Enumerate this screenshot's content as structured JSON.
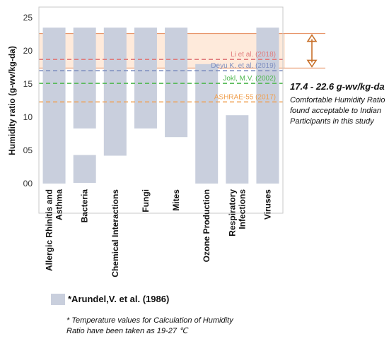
{
  "chart_data": {
    "type": "bar",
    "ylabel": "Humidity ratio (g-wv/kg-da)",
    "ylim": [
      0,
      25
    ],
    "y_ticks": [
      "00",
      "05",
      "10",
      "15",
      "20",
      "25"
    ],
    "grid": false,
    "categories": [
      "Allergic Rhinitis and Asthma",
      "Bacteria",
      "Chemical Interactions",
      "Fungi",
      "Mites",
      "Ozone Production",
      "Respiratory Infections",
      "Viruses"
    ],
    "category_labels": [
      [
        "Allergic Rhinitis and",
        "Asthma"
      ],
      [
        "Bacteria"
      ],
      [
        "Chemical Interactions"
      ],
      [
        "Fungi"
      ],
      [
        "Mites"
      ],
      [
        "Ozone Production"
      ],
      [
        "Respiratory",
        "Infections"
      ],
      [
        "Viruses"
      ]
    ],
    "series": [
      {
        "name": "*Arundel,V. et al. (1986)",
        "color": "#c9cfdd",
        "ranges": [
          [
            [
              0,
              23.5
            ]
          ],
          [
            [
              8.3,
              23.5
            ],
            [
              0.1,
              4.3
            ]
          ],
          [
            [
              4.2,
              23.5
            ]
          ],
          [
            [
              8.3,
              23.5
            ]
          ],
          [
            [
              7.0,
              23.5
            ]
          ],
          [
            [
              0,
              18.0
            ]
          ],
          [
            [
              0,
              10.3
            ]
          ],
          [
            [
              0,
              23.5
            ]
          ]
        ]
      }
    ],
    "reference_lines": [
      {
        "label": "Li et al. (2018)",
        "value": 18.7,
        "color": "#e07b7b"
      },
      {
        "label": "Deyu K. et al. (2019)",
        "value": 17.0,
        "color": "#7f8fc0"
      },
      {
        "label": "Jokl, M.V. (2002)",
        "value": 15.1,
        "color": "#4fb84f"
      },
      {
        "label": "ASHRAE-55 (2017)",
        "value": 12.3,
        "color": "#f0a050"
      }
    ],
    "comfort_band": {
      "low": 17.4,
      "high": 22.6,
      "fill": "#fde3cf",
      "stroke": "#e8956a"
    },
    "annotation": {
      "range_text": "17.4 - 22.6 g-wv/kg-da",
      "text": "Comfortable Humidity Ratio found acceptable to Indian Participants in this study"
    },
    "legend": {
      "label": "*Arundel,V. et al. (1986)",
      "position": "bottom-left"
    },
    "footnote": "* Temperature values for Calculation of Humidity Ratio have been taken as 19-27 ℃"
  }
}
